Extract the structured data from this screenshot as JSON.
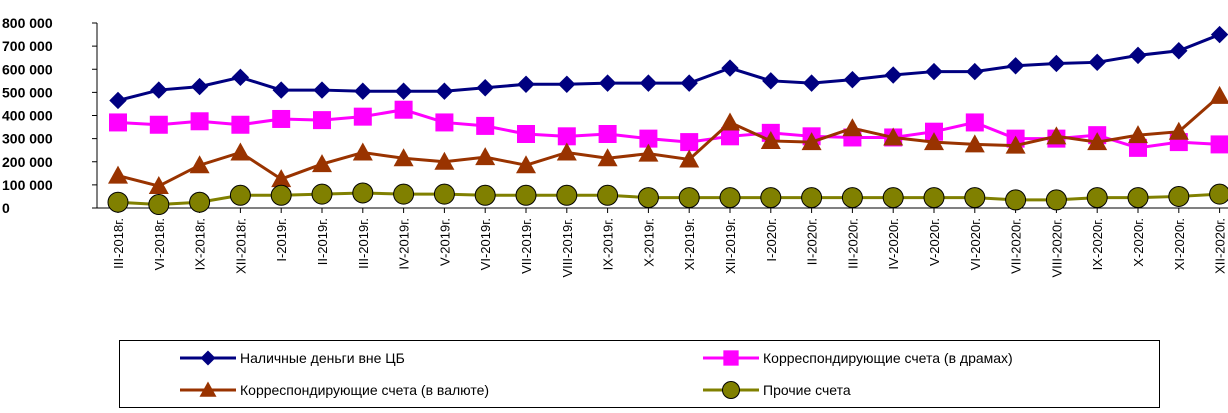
{
  "chart_data": {
    "type": "line",
    "x": [
      "III-2018г.",
      "VI-2018г.",
      "IX-2018г.",
      "XII-2018г.",
      "I-2019г.",
      "II-2019г.",
      "III-2019г.",
      "IV-2019г.",
      "V-2019г.",
      "VI-2019г.",
      "VII-2019г.",
      "VIII-2019г.",
      "IX-2019г.",
      "X-2019г.",
      "XI-2019г.",
      "XII-2019г.",
      "I-2020г.",
      "II-2020г.",
      "III-2020г.",
      "IV-2020г.",
      "V-2020г.",
      "VI-2020г.",
      "VII-2020г.",
      "VIII-2020г.",
      "IX-2020г.",
      "X-2020г.",
      "XI-2020г.",
      "XII-2020г."
    ],
    "ylim": [
      0,
      800000
    ],
    "yticks": [
      0,
      100000,
      200000,
      300000,
      400000,
      500000,
      600000,
      700000,
      800000
    ],
    "ytick_labels": [
      "0",
      "100 000",
      "200 000",
      "300 000",
      "400 000",
      "500 000",
      "600 000",
      "700 000",
      "800 000"
    ],
    "grid": false,
    "legend_position": "bottom",
    "series": [
      {
        "name": "Наличные деньги вне ЦБ",
        "color": "#000080",
        "marker": "diamond",
        "values": [
          465000,
          510000,
          525000,
          565000,
          510000,
          510000,
          505000,
          505000,
          505000,
          520000,
          535000,
          535000,
          540000,
          540000,
          540000,
          605000,
          550000,
          540000,
          555000,
          575000,
          590000,
          590000,
          615000,
          625000,
          630000,
          660000,
          680000,
          750000
        ]
      },
      {
        "name": "Корреспондирующие счета (в драмах)",
        "color": "#FF00FF",
        "marker": "square",
        "values": [
          370000,
          360000,
          375000,
          360000,
          385000,
          380000,
          395000,
          425000,
          370000,
          355000,
          320000,
          310000,
          320000,
          300000,
          285000,
          310000,
          325000,
          310000,
          305000,
          305000,
          330000,
          370000,
          300000,
          300000,
          315000,
          260000,
          285000,
          275000
        ]
      },
      {
        "name": "Корреспондирующие счета (в валюте)",
        "color": "#993300",
        "marker": "triangle",
        "values": [
          140000,
          95000,
          185000,
          240000,
          125000,
          190000,
          240000,
          215000,
          200000,
          220000,
          185000,
          240000,
          215000,
          235000,
          210000,
          370000,
          290000,
          285000,
          345000,
          305000,
          285000,
          275000,
          270000,
          310000,
          285000,
          315000,
          330000,
          485000
        ]
      },
      {
        "name": "Прочие счета",
        "color": "#808000",
        "marker": "circle",
        "values": [
          25000,
          15000,
          25000,
          55000,
          55000,
          60000,
          65000,
          60000,
          60000,
          55000,
          55000,
          55000,
          55000,
          45000,
          45000,
          45000,
          45000,
          45000,
          45000,
          45000,
          45000,
          45000,
          35000,
          35000,
          45000,
          45000,
          50000,
          60000
        ]
      }
    ]
  }
}
